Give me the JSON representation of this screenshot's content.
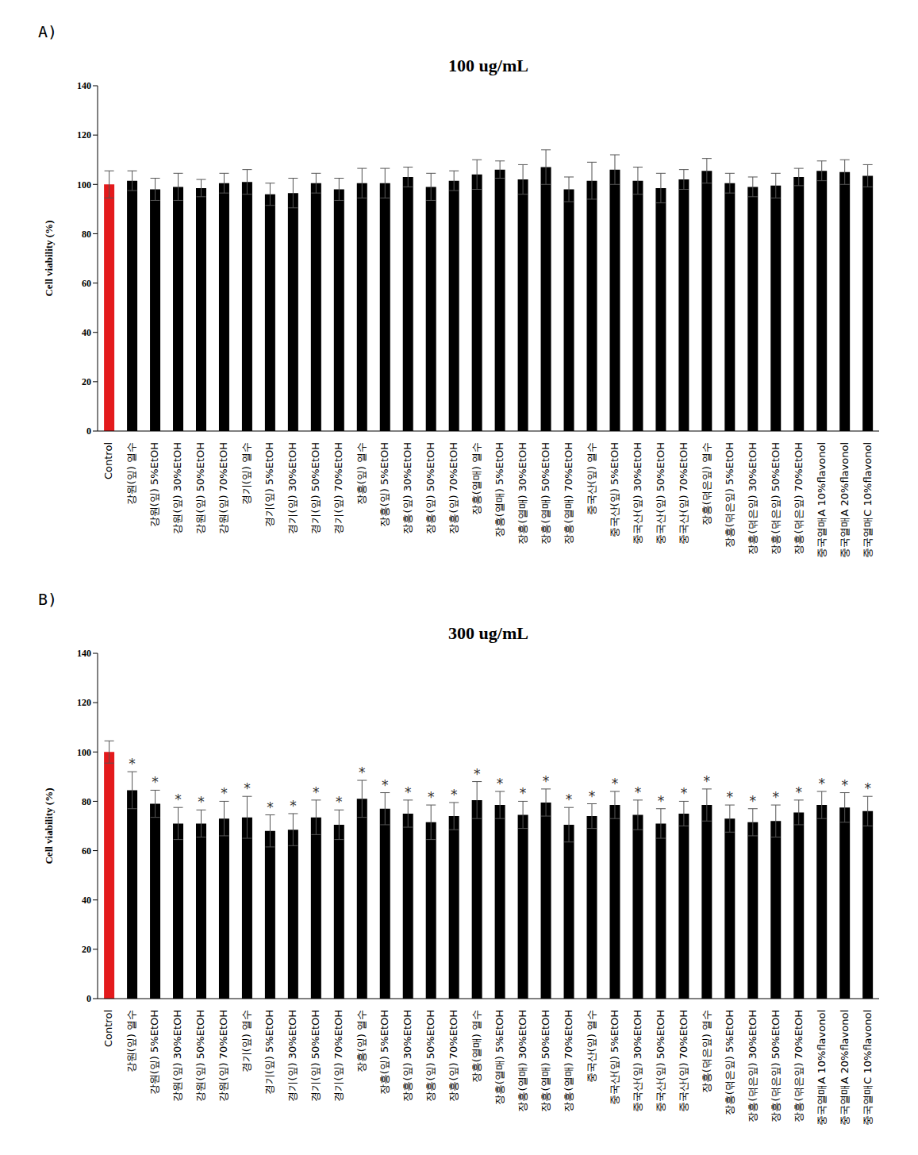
{
  "chart_data": [
    {
      "type": "bar",
      "panel": "A)",
      "title": "100 ug/mL",
      "y_label": "Cell viability (%)",
      "categories": [
        "Control",
        "강원(잎) 열수",
        "강원(잎) 5%EtOH",
        "강원(잎) 30%EtOH",
        "강원(잎) 50%EtOH",
        "강원(잎) 70%EtOH",
        "경기(잎) 열수",
        "경기(잎) 5%EtOH",
        "경기(잎) 30%EtOH",
        "경기(잎) 50%EtOH",
        "경기(잎) 70%EtOH",
        "장흥(잎) 열수",
        "장흥(잎) 5%EtOH",
        "장흥(잎) 30%EtOH",
        "장흥(잎) 50%EtOH",
        "장흥(잎) 70%EtOH",
        "장흥(열매) 열수",
        "장흥(열매) 5%EtOH",
        "장흥(열매) 30%EtOH",
        "장흥(열매) 50%EtOH",
        "장흥(열매) 70%EtOH",
        "중국산(잎) 열수",
        "중국산(잎) 5%EtOH",
        "중국산(잎) 30%EtOH",
        "중국산(잎) 50%EtOH",
        "중국산(잎) 70%EtOH",
        "장흥(덖은잎) 열수",
        "장흥(덖은잎) 5%EtOH",
        "장흥(덖은잎) 30%EtOH",
        "장흥(덖은잎) 50%EtOH",
        "장흥(덖은잎) 70%EtOH",
        "중국열매A 10%flavonol",
        "중국열매A 20%flavonol",
        "중국열매C 10%flavonol"
      ],
      "values": [
        100,
        101.5,
        98,
        99,
        98.5,
        100.5,
        101,
        96,
        96.5,
        100.5,
        98,
        100.5,
        100.5,
        103,
        99,
        101.5,
        104,
        106,
        102,
        107,
        98,
        101.5,
        106,
        101.5,
        98.5,
        102,
        105.5,
        100.5,
        99,
        99.5,
        103,
        105.5,
        105,
        103.5
      ],
      "errors": [
        5.5,
        4,
        4.5,
        5.5,
        3.5,
        4,
        5,
        4.5,
        6,
        4,
        4.5,
        6,
        6,
        4,
        5.5,
        4,
        6,
        3.5,
        6,
        7,
        5,
        7.5,
        6,
        5.5,
        6,
        4,
        5,
        4,
        4,
        5,
        3.5,
        4,
        5,
        4.5
      ],
      "colors": [
        "#e31a1c",
        "#000000",
        "#000000",
        "#000000",
        "#000000",
        "#000000",
        "#000000",
        "#000000",
        "#000000",
        "#000000",
        "#000000",
        "#000000",
        "#000000",
        "#000000",
        "#000000",
        "#000000",
        "#000000",
        "#000000",
        "#000000",
        "#000000",
        "#000000",
        "#000000",
        "#000000",
        "#000000",
        "#000000",
        "#000000",
        "#000000",
        "#000000",
        "#000000",
        "#000000",
        "#000000",
        "#000000",
        "#000000",
        "#000000"
      ],
      "ylim": [
        0,
        140
      ],
      "yticks": [
        0,
        20,
        40,
        60,
        80,
        100,
        120,
        140
      ]
    },
    {
      "type": "bar",
      "panel": "B)",
      "title": "300 ug/mL",
      "y_label": "Cell viability (%)",
      "categories": [
        "Control",
        "강원(잎) 열수",
        "강원(잎) 5%EtOH",
        "강원(잎) 30%EtOH",
        "강원(잎) 50%EtOH",
        "강원(잎) 70%EtOH",
        "경기(잎) 열수",
        "경기(잎) 5%EtOH",
        "경기(잎) 30%EtOH",
        "경기(잎) 50%EtOH",
        "경기(잎) 70%EtOH",
        "장흥(잎) 열수",
        "장흥(잎) 5%EtOH",
        "장흥(잎) 30%EtOH",
        "장흥(잎) 50%EtOH",
        "장흥(잎) 70%EtOH",
        "장흥(열매) 열수",
        "장흥(열매) 5%EtOH",
        "장흥(열매) 30%EtOH",
        "장흥(열매) 50%EtOH",
        "장흥(열매) 70%EtOH",
        "중국산(잎) 열수",
        "중국산(잎) 5%EtOH",
        "중국산(잎) 30%EtOH",
        "중국산(잎) 50%EtOH",
        "중국산(잎) 70%EtOH",
        "장흥(덖은잎) 열수",
        "장흥(덖은잎) 5%EtOH",
        "장흥(덖은잎) 30%EtOH",
        "장흥(덖은잎) 50%EtOH",
        "장흥(덖은잎) 70%EtOH",
        "중국열매A 10%flavonol",
        "중국열매A 20%flavonol",
        "중국열매C 10%flavonol"
      ],
      "values": [
        100,
        84.5,
        79,
        71,
        71,
        73,
        73.5,
        68,
        68.5,
        73.5,
        70.5,
        81,
        77,
        75,
        71.5,
        74,
        80.5,
        78.5,
        74.5,
        79.5,
        70.5,
        74,
        78.5,
        74.5,
        71,
        75,
        78.5,
        73,
        71.5,
        72,
        75.5,
        78.5,
        77.5,
        76
      ],
      "errors": [
        4.5,
        7.5,
        5.5,
        6.5,
        5.5,
        7,
        8.5,
        6.5,
        6.5,
        7,
        6,
        7.5,
        6.5,
        5.5,
        7,
        5.5,
        7.5,
        5.5,
        5.5,
        5.5,
        7,
        5,
        5.5,
        6,
        6,
        5,
        6.5,
        5.5,
        5.5,
        6.5,
        5,
        5.5,
        6,
        6
      ],
      "significance": [
        null,
        "*",
        "*",
        "*",
        "*",
        "*",
        "*",
        "*",
        "*",
        "*",
        "*",
        "*",
        "*",
        "*",
        "*",
        "*",
        "*",
        "*",
        "*",
        "*",
        "*",
        "*",
        "*",
        "*",
        "*",
        "*",
        "*",
        "*",
        "*",
        "*",
        "*",
        "*",
        "*",
        "*"
      ],
      "colors": [
        "#e31a1c",
        "#000000",
        "#000000",
        "#000000",
        "#000000",
        "#000000",
        "#000000",
        "#000000",
        "#000000",
        "#000000",
        "#000000",
        "#000000",
        "#000000",
        "#000000",
        "#000000",
        "#000000",
        "#000000",
        "#000000",
        "#000000",
        "#000000",
        "#000000",
        "#000000",
        "#000000",
        "#000000",
        "#000000",
        "#000000",
        "#000000",
        "#000000",
        "#000000",
        "#000000",
        "#000000",
        "#000000",
        "#000000",
        "#000000"
      ],
      "ylim": [
        0,
        140
      ],
      "yticks": [
        0,
        20,
        40,
        60,
        80,
        100,
        120,
        140
      ]
    }
  ]
}
